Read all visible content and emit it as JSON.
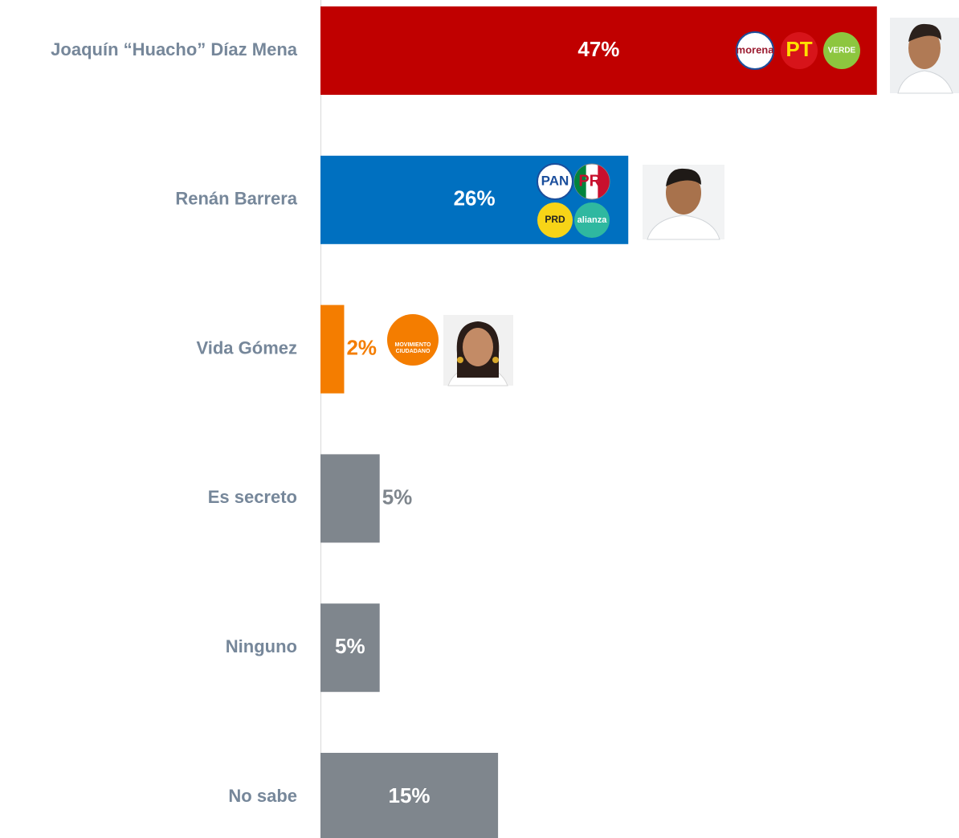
{
  "chart_data": {
    "type": "bar",
    "orientation": "horizontal",
    "categories": [
      "Joaquín “Huacho” Díaz Mena",
      "Renán Barrera",
      "Vida Gómez",
      "Es secreto",
      "Ninguno",
      "No sabe"
    ],
    "values": [
      47,
      26,
      2,
      5,
      5,
      15
    ],
    "value_labels": [
      "47%",
      "26%",
      "2%",
      "5%",
      "5%",
      "15%"
    ],
    "colors": [
      "#c00000",
      "#0070c0",
      "#f47d00",
      "#7f868d",
      "#7f868d",
      "#7f868d"
    ],
    "logos": [
      [
        [
          "morena"
        ],
        [
          "PT"
        ],
        [
          "VERDE"
        ]
      ],
      [
        [
          "PAN"
        ],
        [
          "PRI"
        ],
        [
          "PRD"
        ],
        [
          "alianza"
        ]
      ],
      [
        [
          "MOVIMIENTO",
          "CIUDADANO"
        ]
      ],
      [],
      [],
      []
    ]
  }
}
